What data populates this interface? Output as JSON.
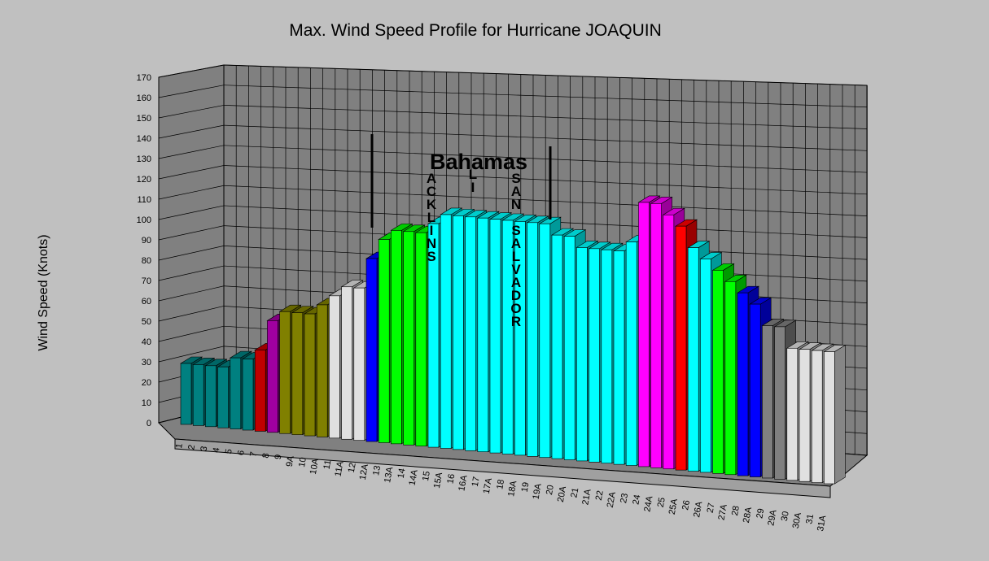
{
  "chart_data": {
    "type": "bar3d",
    "title": "Max. Wind Speed Profile for Hurricane JOAQUIN",
    "y_label": "Wind Speed (Knots)",
    "categories": [
      "1",
      "2",
      "3",
      "4",
      "5",
      "6",
      "7",
      "8",
      "9",
      "9A",
      "10",
      "10A",
      "11",
      "11A",
      "12",
      "12A",
      "13",
      "13A",
      "14",
      "14A",
      "15",
      "15A",
      "16",
      "16A",
      "17",
      "17A",
      "18",
      "18A",
      "19",
      "19A",
      "20",
      "20A",
      "21",
      "21A",
      "22",
      "22A",
      "23",
      "24",
      "24A",
      "25",
      "25A",
      "26",
      "26A",
      "27",
      "27A",
      "28",
      "28A",
      "29",
      "29A",
      "30",
      "30A",
      "31",
      "31A"
    ],
    "values": [
      30,
      30,
      30,
      30,
      35,
      35,
      40,
      55,
      60,
      60,
      60,
      65,
      70,
      75,
      75,
      90,
      100,
      105,
      105,
      105,
      110,
      115,
      115,
      115,
      115,
      115,
      115,
      115,
      115,
      115,
      110,
      110,
      105,
      105,
      105,
      105,
      110,
      130,
      130,
      125,
      120,
      110,
      105,
      100,
      95,
      90,
      85,
      75,
      75,
      65,
      65,
      65,
      65
    ],
    "colors": [
      "#008080",
      "#008080",
      "#008080",
      "#008080",
      "#008080",
      "#008080",
      "#c00000",
      "#a000a0",
      "#808000",
      "#808000",
      "#808000",
      "#808000",
      "#e0e0e0",
      "#e0e0e0",
      "#e0e0e0",
      "#0000ff",
      "#00ff00",
      "#00ff00",
      "#00ff00",
      "#00ff00",
      "#00ffff",
      "#00ffff",
      "#00ffff",
      "#00ffff",
      "#00ffff",
      "#00ffff",
      "#00ffff",
      "#00ffff",
      "#00ffff",
      "#00ffff",
      "#00ffff",
      "#00ffff",
      "#00ffff",
      "#00ffff",
      "#00ffff",
      "#00ffff",
      "#00ffff",
      "#ff00ff",
      "#ff00ff",
      "#ff00ff",
      "#ff0000",
      "#00ffff",
      "#00ffff",
      "#00ff00",
      "#00ff00",
      "#0000ff",
      "#0000ff",
      "#808080",
      "#808080",
      "#e0e0e0",
      "#e0e0e0",
      "#e0e0e0",
      "#e0e0e0"
    ],
    "ylim": [
      0,
      170
    ],
    "yticks": [
      0,
      10,
      20,
      30,
      40,
      50,
      60,
      70,
      80,
      90,
      100,
      110,
      120,
      130,
      140,
      150,
      160,
      170
    ],
    "grid": true,
    "annotations": [
      {
        "text": "Bahamas",
        "orientation": "horizontal"
      },
      {
        "text": "ACKLINS",
        "orientation": "vertical"
      },
      {
        "text": "LI",
        "orientation": "vertical"
      },
      {
        "text": "SAN SALVADOR",
        "orientation": "vertical"
      }
    ]
  }
}
